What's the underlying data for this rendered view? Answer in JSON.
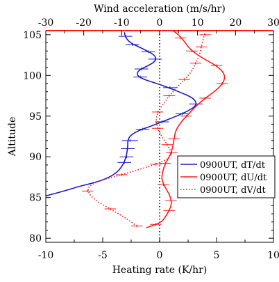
{
  "chart_data": {
    "type": "line",
    "title": "",
    "xlabel": "Heating rate (K/hr)",
    "x2label": "Wind acceleration (m/s/hr)",
    "ylabel": "Altitude",
    "xlim": [
      -10,
      10
    ],
    "x2lim": [
      -30,
      30
    ],
    "ylim": [
      79.5,
      105.5
    ],
    "xticks": [
      -10,
      -5,
      0,
      5,
      10
    ],
    "x2ticks": [
      -30,
      -20,
      -10,
      0,
      10,
      20,
      30
    ],
    "yticks": [
      80,
      85,
      90,
      95,
      100,
      105
    ],
    "zero_line": 0,
    "legend_position": "right-middle",
    "series": [
      {
        "name": "0900UT, dT/dt",
        "color": "#1a1acc",
        "dash": "solid",
        "axis": "bottom",
        "points": [
          [
            -10.0,
            85.2
          ],
          [
            -8.4,
            85.8
          ],
          [
            -7.0,
            86.4
          ],
          [
            -5.8,
            86.8
          ],
          [
            -4.7,
            87.3
          ],
          [
            -3.8,
            88.0
          ],
          [
            -3.2,
            89.0
          ],
          [
            -2.9,
            90.2
          ],
          [
            -2.8,
            91.3
          ],
          [
            -2.8,
            92.0
          ],
          [
            -2.6,
            92.6
          ],
          [
            -1.9,
            93.2
          ],
          [
            -0.9,
            93.7
          ],
          [
            0.2,
            94.3
          ],
          [
            1.5,
            95.0
          ],
          [
            2.6,
            95.7
          ],
          [
            3.3,
            96.4
          ],
          [
            3.0,
            97.2
          ],
          [
            1.7,
            98.0
          ],
          [
            0.0,
            98.9
          ],
          [
            -1.4,
            99.5
          ],
          [
            -2.0,
            100.0
          ],
          [
            -1.9,
            100.6
          ],
          [
            -1.0,
            101.2
          ],
          [
            -0.3,
            101.8
          ],
          [
            -0.4,
            102.5
          ],
          [
            -1.5,
            103.3
          ],
          [
            -2.6,
            104.0
          ],
          [
            -3.0,
            104.7
          ],
          [
            -3.1,
            105.3
          ]
        ],
        "error_bars": [
          [
            -2.6,
            92.0,
            0.7
          ],
          [
            -2.8,
            91.0,
            0.6
          ],
          [
            -2.9,
            90.0,
            0.6
          ],
          [
            -3.1,
            89.3,
            0.6
          ],
          [
            -1.5,
            93.4,
            0.6
          ],
          [
            0.2,
            94.3,
            0.6
          ],
          [
            2.0,
            95.3,
            0.6
          ],
          [
            3.2,
            96.5,
            0.6
          ],
          [
            0.9,
            98.5,
            0.6
          ],
          [
            -1.7,
            99.8,
            0.6
          ],
          [
            -1.6,
            100.8,
            0.6
          ],
          [
            -0.4,
            102.0,
            0.6
          ],
          [
            -1.0,
            102.9,
            0.6
          ],
          [
            -2.4,
            103.8,
            0.6
          ],
          [
            -3.0,
            104.8,
            0.6
          ]
        ]
      },
      {
        "name": "0900UT, dU/dt",
        "color": "#ff1a1a",
        "dash": "solid",
        "axis": "top",
        "points": [
          [
            -3.5,
            81.3
          ],
          [
            -1.5,
            81.6
          ],
          [
            0.5,
            82.0
          ],
          [
            1.5,
            82.6
          ],
          [
            2.5,
            83.4
          ],
          [
            3.2,
            84.2
          ],
          [
            2.8,
            85.2
          ],
          [
            1.5,
            86.2
          ],
          [
            0.5,
            87.2
          ],
          [
            0.8,
            88.2
          ],
          [
            1.5,
            89.2
          ],
          [
            2.8,
            90.2
          ],
          [
            3.5,
            91.2
          ],
          [
            3.8,
            92.2
          ],
          [
            4.2,
            93.2
          ],
          [
            5.5,
            94.2
          ],
          [
            7.5,
            95.2
          ],
          [
            9.5,
            96.2
          ],
          [
            12.0,
            97.2
          ],
          [
            15.0,
            98.2
          ],
          [
            17.0,
            99.2
          ],
          [
            17.2,
            100.2
          ],
          [
            15.0,
            101.2
          ],
          [
            11.0,
            102.2
          ],
          [
            8.0,
            103.2
          ],
          [
            6.5,
            104.2
          ],
          [
            5.0,
            105.0
          ],
          [
            3.5,
            105.5
          ]
        ],
        "error_bars": [
          [
            -1.0,
            81.7,
            1.5
          ],
          [
            2.5,
            83.4,
            1.5
          ],
          [
            3.0,
            84.6,
            1.5
          ],
          [
            1.0,
            86.6,
            1.5
          ],
          [
            1.5,
            89.2,
            1.5
          ],
          [
            3.8,
            92.2,
            1.5
          ],
          [
            7.0,
            95.0,
            1.5
          ],
          [
            12.0,
            97.2,
            1.5
          ],
          [
            16.5,
            99.0,
            1.5
          ],
          [
            15.0,
            101.2,
            1.5
          ],
          [
            8.5,
            103.0,
            1.5
          ],
          [
            5.5,
            104.6,
            1.5
          ]
        ]
      },
      {
        "name": "0900UT, dV/dt",
        "color": "#ff1a1a",
        "dash": "dotted",
        "axis": "top",
        "points": [
          [
            -6.0,
            81.5
          ],
          [
            -9.0,
            82.5
          ],
          [
            -13.0,
            83.6
          ],
          [
            -17.5,
            84.8
          ],
          [
            -19.0,
            85.8
          ],
          [
            -18.5,
            86.5
          ],
          [
            -15.0,
            87.2
          ],
          [
            -10.0,
            87.8
          ],
          [
            -5.0,
            88.5
          ],
          [
            -1.0,
            89.1
          ],
          [
            2.5,
            89.8
          ],
          [
            3.2,
            90.5
          ],
          [
            2.0,
            91.5
          ],
          [
            0.5,
            92.5
          ],
          [
            -0.5,
            93.5
          ],
          [
            -1.0,
            94.5
          ],
          [
            -0.5,
            95.5
          ],
          [
            1.0,
            96.5
          ],
          [
            2.5,
            97.5
          ],
          [
            4.5,
            98.5
          ],
          [
            6.5,
            99.5
          ],
          [
            8.5,
            100.5
          ],
          [
            9.5,
            101.5
          ],
          [
            10.5,
            102.5
          ],
          [
            11.0,
            103.5
          ],
          [
            11.5,
            104.5
          ],
          [
            12.0,
            105.3
          ]
        ],
        "error_bars": [
          [
            -6.0,
            81.5,
            1.5
          ],
          [
            -13.0,
            83.6,
            1.5
          ],
          [
            -19.0,
            85.8,
            1.5
          ],
          [
            -10.0,
            87.8,
            1.5
          ],
          [
            -1.0,
            89.1,
            1.5
          ],
          [
            3.2,
            90.5,
            1.5
          ],
          [
            2.0,
            91.5,
            1.5
          ],
          [
            -0.5,
            93.5,
            1.5
          ],
          [
            -0.5,
            95.5,
            1.5
          ],
          [
            2.5,
            97.5,
            1.5
          ],
          [
            6.5,
            99.5,
            1.5
          ],
          [
            9.5,
            101.5,
            1.5
          ],
          [
            11.0,
            103.5,
            1.5
          ],
          [
            12.0,
            105.0,
            1.5
          ]
        ]
      }
    ]
  }
}
